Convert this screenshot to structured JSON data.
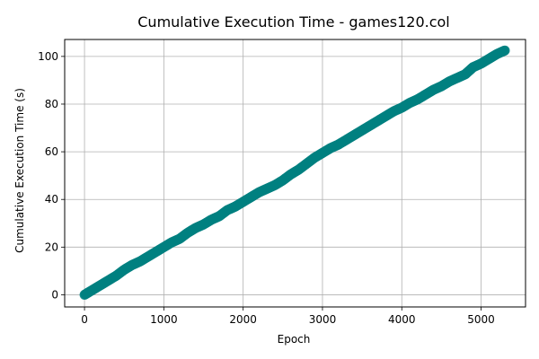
{
  "chart_data": {
    "type": "scatter",
    "title": "Cumulative Execution Time - games120.col",
    "xlabel": "Epoch",
    "ylabel": "Cumulative Execution Time (s)",
    "xlim": [
      -250,
      5560
    ],
    "ylim": [
      -5.1,
      107.1
    ],
    "xticks": [
      0,
      1000,
      2000,
      3000,
      4000,
      5000
    ],
    "yticks": [
      0,
      20,
      40,
      60,
      80,
      100
    ],
    "grid": true,
    "legend": "none",
    "marker_color": "#008080",
    "series": [
      {
        "x": [
          0,
          100,
          200,
          300,
          400,
          500,
          600,
          700,
          800,
          900,
          1000,
          1100,
          1200,
          1300,
          1400,
          1500,
          1600,
          1700,
          1800,
          1900,
          2000,
          2100,
          2200,
          2300,
          2400,
          2500,
          2600,
          2700,
          2800,
          2900,
          3000,
          3100,
          3200,
          3300,
          3400,
          3500,
          3600,
          3700,
          3800,
          3900,
          4000,
          4100,
          4200,
          4300,
          4400,
          4500,
          4600,
          4700,
          4800,
          4850,
          4900,
          5000,
          5100,
          5200,
          5300
        ],
        "y": [
          0,
          2,
          4,
          6,
          8,
          10.5,
          12.5,
          14,
          16,
          18,
          20,
          22,
          23.5,
          26,
          28,
          29.5,
          31.5,
          33,
          35.5,
          37,
          39,
          41,
          43,
          44.5,
          46,
          48,
          50.5,
          52.5,
          55,
          57.5,
          59.5,
          61.5,
          63,
          65,
          67,
          69,
          71,
          73,
          75,
          77,
          78.5,
          80.5,
          82,
          84,
          86,
          87.5,
          89.5,
          91,
          92.5,
          94,
          95.5,
          97,
          99,
          101,
          102.5
        ]
      }
    ]
  }
}
